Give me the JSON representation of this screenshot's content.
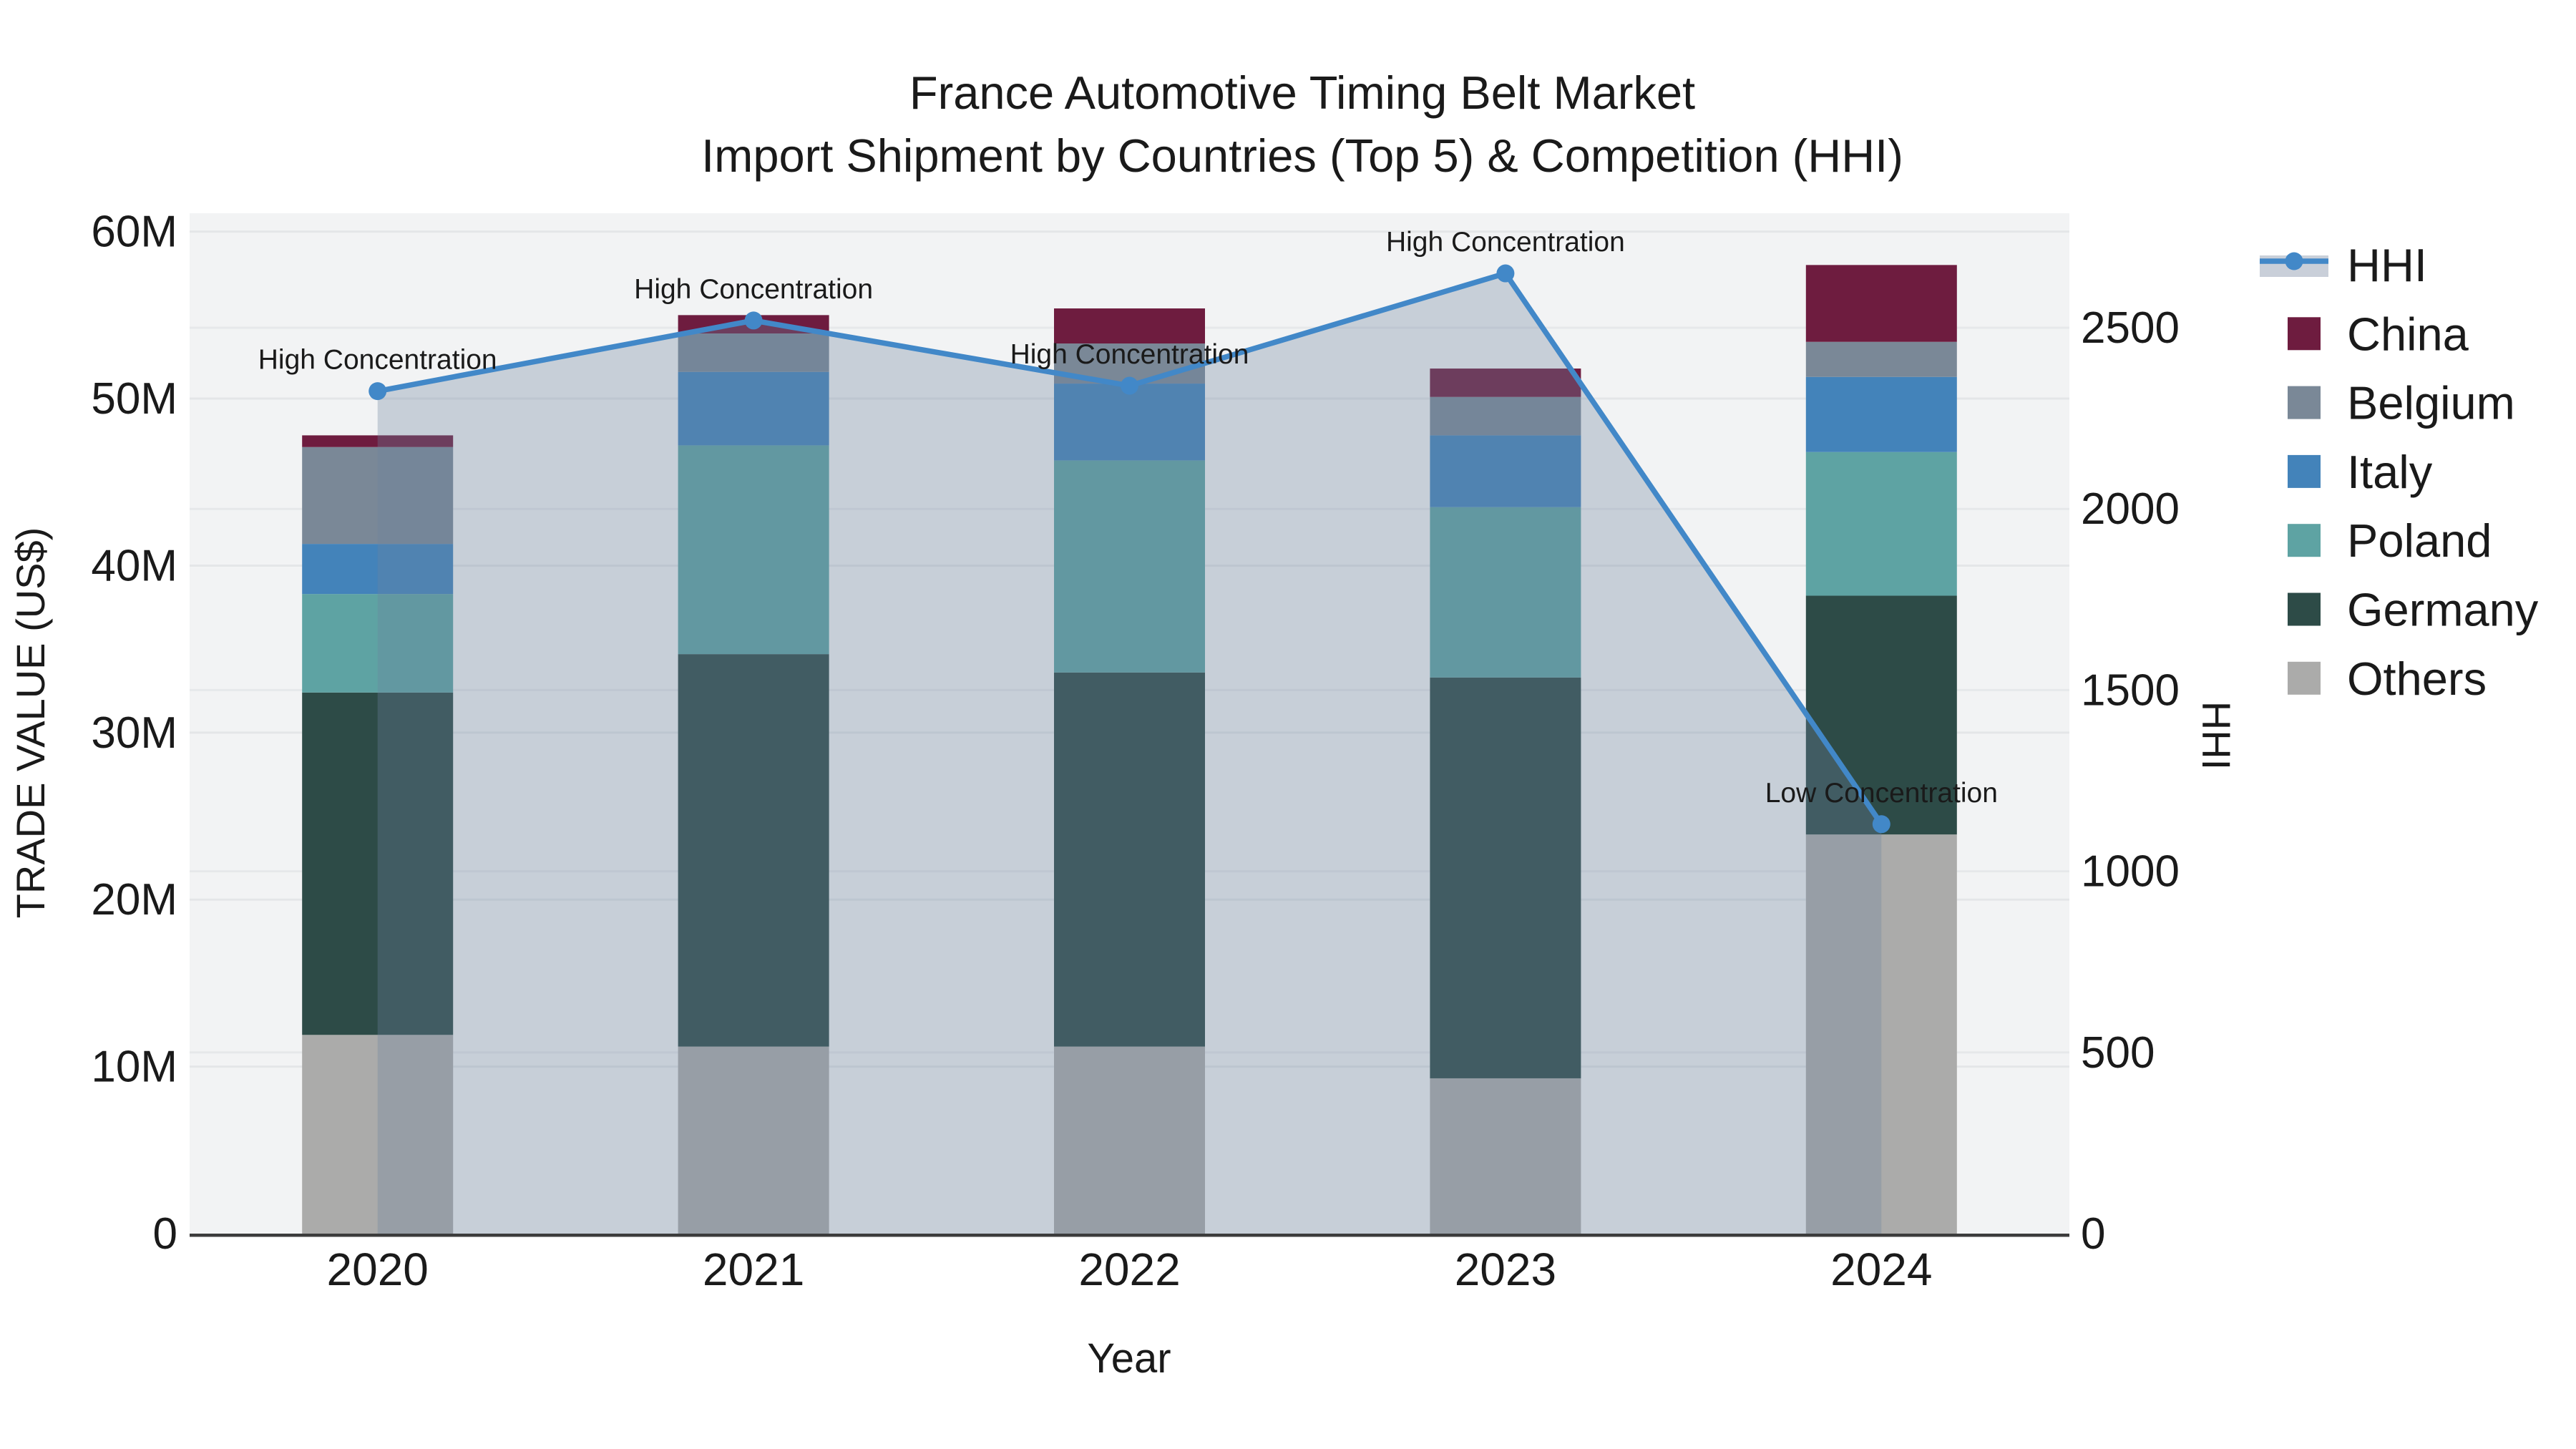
{
  "chart_data": {
    "type": "bar+line",
    "title": {
      "line1": "France Automotive Timing Belt Market",
      "line2": "Import Shipment by Countries (Top 5) & Competition (HHI)"
    },
    "categories": [
      "2020",
      "2021",
      "2022",
      "2023",
      "2024"
    ],
    "stack_order": [
      "Others",
      "Germany",
      "Poland",
      "Italy",
      "Belgium",
      "China"
    ],
    "series": [
      {
        "name": "Others",
        "values": [
          11.9,
          11.2,
          11.2,
          9.3,
          23.9
        ],
        "color": "#ABABAA"
      },
      {
        "name": "Germany",
        "values": [
          20.5,
          23.5,
          22.4,
          24.0,
          14.3
        ],
        "color": "#2D4B47"
      },
      {
        "name": "Poland",
        "values": [
          5.9,
          12.5,
          12.7,
          10.2,
          8.6
        ],
        "color": "#5EA3A3"
      },
      {
        "name": "Italy",
        "values": [
          3.0,
          4.4,
          4.6,
          4.3,
          4.5
        ],
        "color": "#4383BA"
      },
      {
        "name": "Belgium",
        "values": [
          5.8,
          2.3,
          2.4,
          2.3,
          2.1
        ],
        "color": "#7A8897"
      },
      {
        "name": "China",
        "values": [
          0.7,
          1.1,
          2.1,
          1.7,
          4.6
        ],
        "color": "#6E1C3F"
      }
    ],
    "bar_totals": [
      47.8,
      55.0,
      55.4,
      51.8,
      58.0
    ],
    "values_unit": "million US$",
    "line_series": {
      "name": "HHI",
      "values": [
        2325,
        2520,
        2340,
        2650,
        1130
      ],
      "color": "#4288C8",
      "area_fill": "rgba(108,130,160,0.32)",
      "legend_band_color": "#C9CFD9"
    },
    "left_axis": {
      "title": "TRADE VALUE (US$)",
      "tick_labels": [
        "0",
        "10M",
        "20M",
        "30M",
        "40M",
        "50M",
        "60M"
      ],
      "tick_values": [
        0,
        10,
        20,
        30,
        40,
        50,
        60
      ],
      "range_max": 61.1
    },
    "right_axis": {
      "title": "HHI",
      "tick_labels": [
        "0",
        "500",
        "1000",
        "1500",
        "2000",
        "2500"
      ],
      "tick_values": [
        0,
        500,
        1000,
        1500,
        2000,
        2500
      ],
      "range_max": 2816
    },
    "x_axis": {
      "title": "Year"
    },
    "annotations": [
      {
        "category": "2020",
        "text": "High Concentration"
      },
      {
        "category": "2021",
        "text": "High Concentration"
      },
      {
        "category": "2022",
        "text": "High Concentration"
      },
      {
        "category": "2023",
        "text": "High Concentration"
      },
      {
        "category": "2024",
        "text": "Low Concentration"
      }
    ],
    "legend": {
      "items": [
        "HHI",
        "China",
        "Belgium",
        "Italy",
        "Poland",
        "Germany",
        "Others"
      ]
    },
    "style": {
      "plot_bg": "#F2F3F4",
      "grid_color": "#E4E6E8",
      "axis_line_color": "#3C3C3C",
      "text_color": "#1A1A1A"
    }
  }
}
